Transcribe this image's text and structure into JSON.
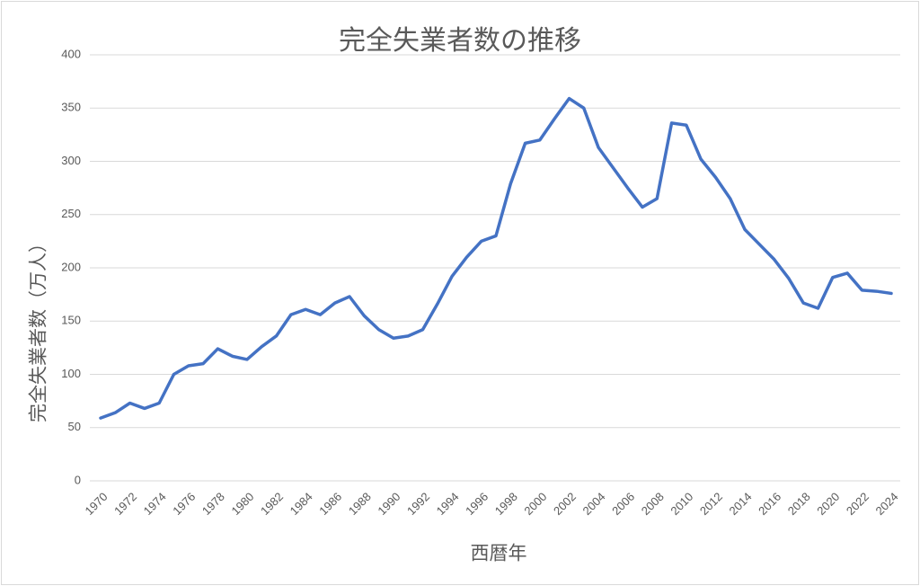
{
  "chart_data": {
    "type": "line",
    "title": "完全失業者数の推移",
    "x_label": "西暦年",
    "y_label": "完全失業者数（万人）",
    "x": [
      1970,
      1971,
      1972,
      1973,
      1974,
      1975,
      1976,
      1977,
      1978,
      1979,
      1980,
      1981,
      1982,
      1983,
      1984,
      1985,
      1986,
      1987,
      1988,
      1989,
      1990,
      1991,
      1992,
      1993,
      1994,
      1995,
      1996,
      1997,
      1998,
      1999,
      2000,
      2001,
      2002,
      2003,
      2004,
      2005,
      2006,
      2007,
      2008,
      2009,
      2010,
      2011,
      2012,
      2013,
      2014,
      2015,
      2016,
      2017,
      2018,
      2019,
      2020,
      2021,
      2022,
      2023,
      2024
    ],
    "values": [
      59,
      64,
      73,
      68,
      73,
      100,
      108,
      110,
      124,
      117,
      114,
      126,
      136,
      156,
      161,
      156,
      167,
      173,
      155,
      142,
      134,
      136,
      142,
      166,
      192,
      210,
      225,
      230,
      279,
      317,
      320,
      340,
      359,
      350,
      313,
      294,
      275,
      257,
      265,
      336,
      334,
      302,
      285,
      265,
      236,
      222,
      208,
      190,
      167,
      162,
      191,
      195,
      179,
      178,
      176
    ],
    "color": "#4472c4",
    "xlim": [
      1970,
      2024
    ],
    "xticks": [
      1970,
      1972,
      1974,
      1976,
      1978,
      1980,
      1982,
      1984,
      1986,
      1988,
      1990,
      1992,
      1994,
      1996,
      1998,
      2000,
      2002,
      2004,
      2006,
      2008,
      2010,
      2012,
      2014,
      2016,
      2018,
      2020,
      2022,
      2024
    ],
    "ylim": [
      0,
      400
    ],
    "yticks": [
      0,
      50,
      100,
      150,
      200,
      250,
      300,
      350,
      400
    ],
    "grid": true
  }
}
